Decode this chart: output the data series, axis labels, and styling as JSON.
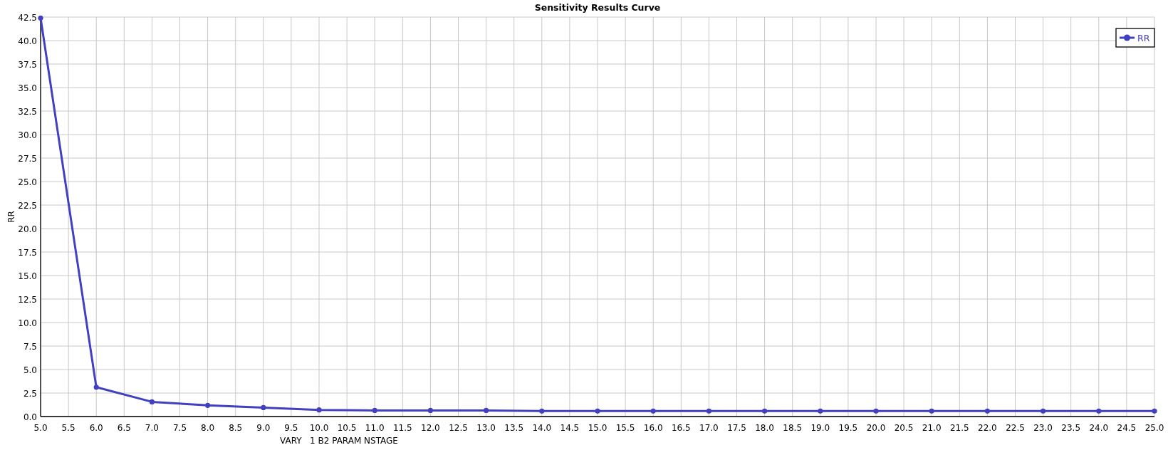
{
  "chart_data": {
    "type": "line",
    "title": "Sensitivity Results Curve",
    "xlabel": "VARY   1 B2 PARAM NSTAGE",
    "ylabel": "RR",
    "x": [
      5,
      6,
      7,
      8,
      9,
      10,
      11,
      12,
      13,
      14,
      15,
      16,
      17,
      18,
      19,
      20,
      21,
      22,
      23,
      24,
      25
    ],
    "series": [
      {
        "name": "RR",
        "color": "#4040c0",
        "values": [
          42.4,
          3.12,
          1.56,
          1.19,
          0.95,
          0.71,
          0.65,
          0.65,
          0.65,
          0.58,
          0.58,
          0.58,
          0.58,
          0.58,
          0.58,
          0.58,
          0.58,
          0.58,
          0.58,
          0.58,
          0.58
        ]
      }
    ],
    "xlim": [
      5,
      25
    ],
    "xticks": [
      {
        "value": 5,
        "label": "5.0"
      },
      5.5,
      {
        "value": 6,
        "label": "6.0"
      },
      6.5,
      {
        "value": 7,
        "label": "7.0"
      },
      7.5,
      {
        "value": 8,
        "label": "8.0"
      },
      8.5,
      {
        "value": 9,
        "label": "9.0"
      },
      9.5,
      {
        "value": 10,
        "label": "10.0"
      },
      10.5,
      {
        "value": 11,
        "label": "11.0"
      },
      11.5,
      {
        "value": 12,
        "label": "12.0"
      },
      12.5,
      {
        "value": 13,
        "label": "13.0"
      },
      13.5,
      {
        "value": 14,
        "label": "14.0"
      },
      14.5,
      {
        "value": 15,
        "label": "15.0"
      },
      15.5,
      {
        "value": 16,
        "label": "16.0"
      },
      16.5,
      {
        "value": 17,
        "label": "17.0"
      },
      17.5,
      {
        "value": 18,
        "label": "18.0"
      },
      18.5,
      {
        "value": 19,
        "label": "19.0"
      },
      19.5,
      {
        "value": 20,
        "label": "20.0"
      },
      20.5,
      {
        "value": 21,
        "label": "21.0"
      },
      21.5,
      {
        "value": 22,
        "label": "22.0"
      },
      22.5,
      {
        "value": 23,
        "label": "23.0"
      },
      23.5,
      {
        "value": 24,
        "label": "24.0"
      },
      24.5,
      {
        "value": 25,
        "label": "25.0"
      }
    ],
    "ylim": [
      0,
      42.5
    ],
    "yticks": [
      {
        "value": 0,
        "label": "0.0"
      },
      2.5,
      {
        "value": 5,
        "label": "5.0"
      },
      7.5,
      {
        "value": 10,
        "label": "10.0"
      },
      12.5,
      {
        "value": 15,
        "label": "15.0"
      },
      17.5,
      {
        "value": 20,
        "label": "20.0"
      },
      22.5,
      {
        "value": 25,
        "label": "25.0"
      },
      27.5,
      {
        "value": 30,
        "label": "30.0"
      },
      32.5,
      {
        "value": 35,
        "label": "35.0"
      },
      37.5,
      {
        "value": 40,
        "label": "40.0"
      },
      42.5
    ],
    "grid": true,
    "legend": "top right",
    "marker": "circle",
    "line_style": "solid"
  }
}
